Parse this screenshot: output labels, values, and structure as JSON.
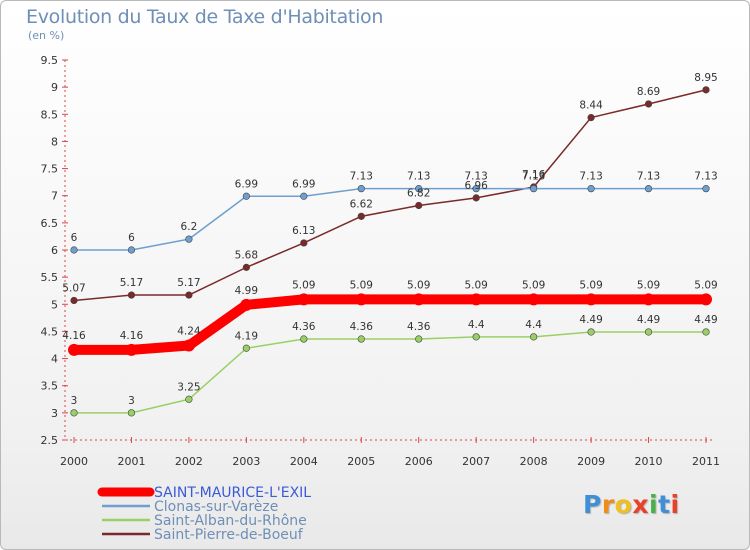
{
  "chart_data": {
    "type": "line",
    "title": "Evolution du Taux de Taxe d'Habitation",
    "subtitle": "(en %)",
    "xlabel": "",
    "ylabel": "",
    "x": [
      "2000",
      "2001",
      "2002",
      "2003",
      "2004",
      "2005",
      "2006",
      "2007",
      "2008",
      "2009",
      "2010",
      "2011"
    ],
    "ylim": [
      2.5,
      9.5
    ],
    "yticks": [
      "2.5",
      "3",
      "3.5",
      "4",
      "4.5",
      "5",
      "5.5",
      "6",
      "6.5",
      "7",
      "7.5",
      "8",
      "8.5",
      "9",
      "9.5"
    ],
    "grid": false,
    "legend_position": "bottom-left",
    "series": [
      {
        "name": "SAINT-MAURICE-L'EXIL",
        "color": "#ff0000",
        "values": [
          4.16,
          4.16,
          4.24,
          4.99,
          5.09,
          5.09,
          5.09,
          5.09,
          5.09,
          5.09,
          5.09,
          5.09
        ],
        "labels": [
          "4.16",
          "4.16",
          "4.24",
          "4.99",
          "5.09",
          "5.09",
          "5.09",
          "5.09",
          "5.09",
          "5.09",
          "5.09",
          "5.09"
        ]
      },
      {
        "name": "Clonas-sur-Varèze",
        "color": "#6f9fd0",
        "values": [
          6,
          6,
          6.2,
          6.99,
          6.99,
          7.13,
          7.13,
          7.13,
          7.13,
          7.13,
          7.13,
          7.13
        ],
        "labels": [
          "6",
          "6",
          "6.2",
          "6.99",
          "6.99",
          "7.13",
          "7.13",
          "7.13",
          "7.13",
          "7.13",
          "7.13",
          "7.13"
        ]
      },
      {
        "name": "Saint-Alban-du-Rhône",
        "color": "#99d066",
        "values": [
          3,
          3,
          3.25,
          4.19,
          4.36,
          4.36,
          4.36,
          4.4,
          4.4,
          4.49,
          4.49,
          4.49
        ],
        "labels": [
          "3",
          "3",
          "3.25",
          "4.19",
          "4.36",
          "4.36",
          "4.36",
          "4.4",
          "4.4",
          "4.49",
          "4.49",
          "4.49"
        ]
      },
      {
        "name": "Saint-Pierre-de-Boeuf",
        "color": "#7a2a2a",
        "values": [
          5.07,
          5.17,
          5.17,
          5.68,
          6.13,
          6.62,
          6.82,
          6.96,
          7.16,
          8.44,
          8.69,
          8.95
        ],
        "labels": [
          "5.07",
          "5.17",
          "5.17",
          "5.68",
          "6.13",
          "6.62",
          "6.82",
          "6.96",
          "7.16",
          "8.44",
          "8.69",
          "8.95"
        ]
      }
    ]
  },
  "legend_colors": {
    "main": "#3b5bd6",
    "others": "#6e8fb6"
  },
  "logo": {
    "text": "Proxiti",
    "letters": [
      "P",
      "r",
      "o",
      "x",
      "i",
      "t",
      "i"
    ],
    "colors": [
      "#3f8fd8",
      "#f08c1a",
      "#f0c020",
      "#e8402a",
      "#4ab04a",
      "#3f8fd8",
      "#e8402a"
    ]
  }
}
